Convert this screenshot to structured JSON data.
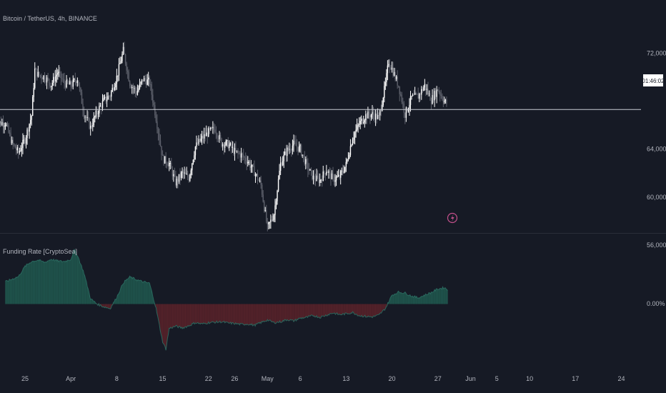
{
  "header": {
    "symbol_title": "Bitcoin / TetherUS, 4h, BINANCE"
  },
  "indicator": {
    "title": "Funding Rate [CryptoSea]"
  },
  "price_axis": {
    "ticks": [
      {
        "value": 56000,
        "label": "56,000.00"
      },
      {
        "value": 60000,
        "label": "60,000.00"
      },
      {
        "value": 64000,
        "label": "64,000.00"
      },
      {
        "value": 72000,
        "label": "72,000.00"
      }
    ],
    "current_time_label": "01:46:02"
  },
  "funding_axis": {
    "zero_label": "0.00%"
  },
  "time_axis": {
    "labels": [
      {
        "day": 17,
        "text": "25"
      },
      {
        "day": 24,
        "text": "Apr"
      },
      {
        "day": 31,
        "text": "8"
      },
      {
        "day": 38,
        "text": "15"
      },
      {
        "day": 45,
        "text": "22"
      },
      {
        "day": 49,
        "text": "26"
      },
      {
        "day": 54,
        "text": "May"
      },
      {
        "day": 59,
        "text": "6"
      },
      {
        "day": 66,
        "text": "13"
      },
      {
        "day": 73,
        "text": "20"
      },
      {
        "day": 80,
        "text": "27"
      },
      {
        "day": 85,
        "text": "Jun"
      },
      {
        "day": 89,
        "text": "5"
      },
      {
        "day": 94,
        "text": "10"
      },
      {
        "day": 101,
        "text": "17"
      },
      {
        "day": 108,
        "text": "24"
      }
    ]
  },
  "colors": {
    "background": "#161a25",
    "up_candle": "#ffffff",
    "down_candle": "#5d606b",
    "funding_positive": "#1c4a44",
    "funding_positive_line": "#2b6d62",
    "funding_negative": "#4a1f27",
    "funding_negative_line": "#6e2a34",
    "price_line": "#c9ccd4",
    "marker": "#c4508c"
  },
  "icons": {
    "event_marker": "lightning-bolt-icon"
  },
  "chart_data": [
    {
      "type": "candlestick",
      "title": "Bitcoin / TetherUS, 4h, BINANCE",
      "x_unit": "day (offset relative to x-axis labels)",
      "ylim": [
        55000,
        74000
      ],
      "current_price": 67300,
      "close_path": [
        [
          14,
          66200
        ],
        [
          15,
          64500
        ],
        [
          16,
          63700
        ],
        [
          17,
          64800
        ],
        [
          18,
          66800
        ],
        [
          18.5,
          70600
        ],
        [
          19,
          70200
        ],
        [
          20,
          70000
        ],
        [
          21,
          69400
        ],
        [
          22,
          70400
        ],
        [
          23,
          69500
        ],
        [
          24,
          69300
        ],
        [
          25,
          69900
        ],
        [
          26,
          67000
        ],
        [
          27,
          65800
        ],
        [
          28,
          67100
        ],
        [
          29,
          68000
        ],
        [
          30,
          68500
        ],
        [
          31,
          70000
        ],
        [
          32,
          72200
        ],
        [
          33,
          69500
        ],
        [
          34,
          68700
        ],
        [
          35,
          69800
        ],
        [
          36,
          69600
        ],
        [
          37,
          66600
        ],
        [
          38,
          63200
        ],
        [
          39,
          62800
        ],
        [
          40,
          61200
        ],
        [
          41,
          62000
        ],
        [
          42,
          61600
        ],
        [
          43,
          64200
        ],
        [
          44,
          64900
        ],
        [
          45,
          65400
        ],
        [
          46,
          65700
        ],
        [
          47,
          64500
        ],
        [
          48,
          64400
        ],
        [
          49,
          63800
        ],
        [
          50,
          63500
        ],
        [
          51,
          63000
        ],
        [
          52,
          62100
        ],
        [
          53,
          61000
        ],
        [
          54,
          57400
        ],
        [
          55,
          58600
        ],
        [
          56,
          62800
        ],
        [
          57,
          63900
        ],
        [
          58,
          64400
        ],
        [
          59,
          64000
        ],
        [
          60,
          62600
        ],
        [
          61,
          61600
        ],
        [
          62,
          61400
        ],
        [
          63,
          62300
        ],
        [
          64,
          61500
        ],
        [
          65,
          61700
        ],
        [
          66,
          62700
        ],
        [
          67,
          65000
        ],
        [
          68,
          66100
        ],
        [
          69,
          66800
        ],
        [
          70,
          66900
        ],
        [
          71,
          66600
        ],
        [
          72,
          69400
        ],
        [
          72.5,
          71300
        ],
        [
          73,
          70700
        ],
        [
          74,
          69300
        ],
        [
          75,
          66900
        ],
        [
          76,
          68300
        ],
        [
          77,
          68400
        ],
        [
          78,
          69300
        ],
        [
          79,
          68100
        ],
        [
          80,
          69000
        ],
        [
          81,
          68000
        ],
        [
          81.5,
          67700
        ]
      ]
    },
    {
      "type": "area",
      "title": "Funding Rate [CryptoSea]",
      "x_unit": "day (offset relative to x-axis labels)",
      "y_unit": "relative (zero = 0.00%)",
      "series": [
        {
          "values": [
            [
              14,
              0.5
            ],
            [
              16,
              0.62
            ],
            [
              17,
              0.85
            ],
            [
              18,
              0.96
            ],
            [
              19,
              0.99
            ],
            [
              20,
              0.94
            ],
            [
              21,
              1.01
            ],
            [
              22,
              0.97
            ],
            [
              23,
              0.96
            ],
            [
              24,
              1.01
            ],
            [
              24.5,
              1.22
            ],
            [
              25,
              1.1
            ],
            [
              26,
              0.7
            ],
            [
              27,
              0.12
            ],
            [
              28,
              0.0
            ],
            [
              29,
              -0.06
            ],
            [
              30,
              -0.1
            ],
            [
              31,
              0.15
            ],
            [
              32,
              0.48
            ],
            [
              33,
              0.61
            ],
            [
              34,
              0.55
            ],
            [
              35,
              0.5
            ],
            [
              36,
              0.47
            ],
            [
              37,
              -0.1
            ],
            [
              38,
              -0.85
            ],
            [
              38.5,
              -1.02
            ],
            [
              39,
              -0.55
            ],
            [
              40,
              -0.5
            ],
            [
              41,
              -0.54
            ],
            [
              42,
              -0.49
            ],
            [
              43,
              -0.42
            ],
            [
              44,
              -0.45
            ],
            [
              45,
              -0.42
            ],
            [
              46,
              -0.41
            ],
            [
              47,
              -0.4
            ],
            [
              48,
              -0.43
            ],
            [
              49,
              -0.44
            ],
            [
              50,
              -0.46
            ],
            [
              51,
              -0.45
            ],
            [
              52,
              -0.48
            ],
            [
              53,
              -0.42
            ],
            [
              54,
              -0.36
            ],
            [
              55,
              -0.42
            ],
            [
              56,
              -0.4
            ],
            [
              57,
              -0.35
            ],
            [
              58,
              -0.38
            ],
            [
              59,
              -0.32
            ],
            [
              60,
              -0.3
            ],
            [
              61,
              -0.26
            ],
            [
              62,
              -0.3
            ],
            [
              63,
              -0.25
            ],
            [
              64,
              -0.2
            ],
            [
              65,
              -0.24
            ],
            [
              66,
              -0.22
            ],
            [
              67,
              -0.19
            ],
            [
              68,
              -0.26
            ],
            [
              69,
              -0.28
            ],
            [
              70,
              -0.29
            ],
            [
              71,
              -0.25
            ],
            [
              72,
              -0.1
            ],
            [
              73,
              0.2
            ],
            [
              74,
              0.27
            ],
            [
              75,
              0.25
            ],
            [
              76,
              0.18
            ],
            [
              77,
              0.14
            ],
            [
              78,
              0.2
            ],
            [
              79,
              0.26
            ],
            [
              80,
              0.34
            ],
            [
              81,
              0.37
            ],
            [
              81.5,
              0.32
            ]
          ]
        }
      ]
    }
  ]
}
